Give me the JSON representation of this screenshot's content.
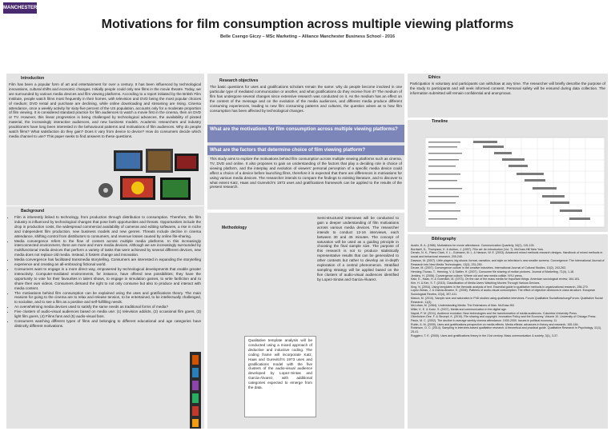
{
  "logo": "MANCHESTER",
  "title": "Motivations for film consumption across multiple viewing platforms",
  "subtitle": "Belle Csengo Giczy – MSc Marketing – Alliance Manchester Business School - 2016",
  "introduction": {
    "heading": "Introduction",
    "text": "Film has been a popular form of art and entertainment for over a century. It has been influenced by technological innovations, cultural shifts and economic changes. Initially people could only see films in the movie theatre. Today, we are surrounded by various media devices and film viewing platforms. According to a report initiated by the British Film Institute, people watch films most frequently in their homes, with television and DVD being the most popular choices of medium; DVD rental and purchase are declining, while online downloading and streaming are rising. Cinema attendance, once a weekly activity for sixty-five percent of the US population, accounts only for a moderate proportion of film viewing. It is considered standard practice for film audiences to watch a movie first in the cinema, then on DVD or TV. However, this linear progression is being challenged by technological advances, the availability of pirated material, the increasingly interactive audiences, and new business models. Academic researchers and industry practitioners have long been interested in the behavioural patterns and motivations of film audiences. Why do people watch films? What satisfaction do they gain? Does it vary from device to device? How do consumers decide which media channel to use? This paper seeks to find answers to these questions."
  },
  "background": {
    "heading": "Background",
    "items": [
      "Film is inherently linked to technology, from production through distribution to consumption. Therefore, the film industry is influenced by technological changes that pose both opportunities and threats. Opportunities include the drop in production costs, the widespread commercial availability of cameras and editing softwares, a rise in niche and independent film production, new business models and new genres. Threats include decline in cinema attendance, shifting control from distributors to consumers, and revenue losses caused by online file-sharing.",
      "Media convergence refers to the flow of content across multiple media platforms. In this increasingly interconnected environment, there are more and more media devices. Although we are increasingly surrounded by multifunctional media devices that perform a variety of tasks that were achieved by several different devices, new media does not replace old media. Instead, it fosters change and innovation.",
      "Media convergence has facilitated transmedia storytelling. Consumers are interested in expanding the storytelling experience and creating an all-embracing fictional world.",
      "Consumers want to engage in a more direct way, empowered by technological developments that enable greater interactivity. Computer-mediated environments, for instance, have offered new possibilities; they have the opportunity to vote for their favourites in talent shows, to engage in simulation games, to write fanfiction and to share their own videos. Consumers demand the right to not only consume but also to produce and interact with media content.",
      "The motivations behind film consumption can be explained using the uses and gratifications theory. The main reasons for going to the cinema are to relax and release tension, to be entertained, to be intellectually challenged, to socialise, and to see a film as a positive and self-fulfilling needs.",
      "An overwhelming media devices used to satisfy the same needs as traditional forms of media?",
      "Five clusters of audio-visual audiences based on media use: (1) television addicts, (2) occasional film goers, (3) light film goers, (4) Films fans and (5) audio-visual fans.",
      "Consumers watching different types of films and belonging to different educational and age categories have distinctly different motivations."
    ]
  },
  "research_objectives": {
    "heading": "Research objectives",
    "text": "The basic questions for uses and gratifications scholars remain the same: why do people become involved in one particular type of mediated communication or another, and what gratifications do they receive from it? The medium of film has undergone several changes since extensive research was conducted on it. As the medium has an effect on the content of the message and on the evolution of the media audiences, and different media produce different consuming experiences, leading to new film consuming patterns and cultures, the question arises as to how film consumption has been affected by technological changes.",
    "question1": "What are the motivations for film consumption across multiple viewing platforms?",
    "question2": "What are the factors that determine choice of film viewing platform?",
    "aim": "This study aims to explore the motivations behind film consumption across multiple viewing platforms such as cinema, TV, DVD and online. It also proposes to gain an understanding of the factors that play a deciding role in choice of viewing platform, and the interplay and evolution of viewers' personal perception of a specific media device could affect a choice of a device before launching films, therefore it is expected that there are differences in motivations for using various media devices. The researcher intends to compare the findings to existing literature, and to discover to what extent Katz, Haas and Gurevitch's 1973 uses and gratifications framework can be applied to the results of the present research."
  },
  "methodology": {
    "heading": "Methodology",
    "text1": "Semi-structured interviews will be conducted to gain a deeper understanding of film motivations across various media devices. The researcher intends to conduct 12-16 interviews, each between 30 and 45 minutes. The concept of saturation will be used as a guiding principle in choosing the final sample size. The purpose of this research is not to produce statistically representative results that can be generalized to other contexts but rather to develop an in-depth exploration of a central phenomenon. Stratified sampling strategy will be applied based on the five clusters of audio-visual audiences identified by Lopez-Sintas and Garcia-Álvarez.",
    "text2": "Qualitative template analysis will be conducted using a mixed approach of deductive and inductive coding. The coding frame will incorporate Katz, Haas and Gurevitch's 1973 uses and gratifications model with the five clusters of the audio-visual audience developed by Lopez-Sintas and Garcia-Álvarez, with additional categories expected to emerge from the data."
  },
  "ethics": {
    "heading": "Ethics",
    "text": "Participation is voluntary and participants can withdraw at any time. The researcher will briefly describe the purpose of the study to participants and will seek informed consent. Personal safety will be ensured during data collection. The information submitted will remain confidential and anonymous."
  },
  "timeline": {
    "heading": "Timeline"
  },
  "bibliography": {
    "heading": "Bibliography",
    "entries": [
      "Austin, B. A. (1986). Motivations for movie attendance. Communication Quarterly, 34(2), 115-126.",
      "Bordwell, D., Thompson, K. & Ashton, J. (1997). Film art: An introduction (Vol. 7). McGraw-Hill New York.",
      "Denzin, N. K., Plano Clark, V. L., Gutmann, M. L. & Hanson, W. E. (2003). Advanced mixed methods research designs. Handbook of mixed methods in social and behavioral research, 209-240.",
      "Dawson, M. (2007). Little players, big shows: format, narration, and style on television's new smaller screens. Convergence: The International Journal of Research into New Media Technologies, 13(3), 231-250.",
      "Deuze, M. (2007). Convergence culture in the creative industries. International Journal of Cultural Studies, 10(2), 243-263.",
      "Henning-Thurau, T., Henning, V. & Sattler, H. (2007). Consumer file sharing of motion pictures. Journal of Marketing, 71(4), 1-18.",
      "Jenkins, H. (2006). Convergence culture: Where old and new media collide. NYU press.",
      "Katz, E., Haas, H. & Gurevitch, M. (1973). On the use of the mass media for important things. American sociological review, 164-181.",
      "Kim, H. & Kim, S. T. (2015). Classification of Media Users Watching Movies Through Various Devices.",
      "King, N. (2004). Using templates in the thematic analysis of text. Essential guide to qualitative methods in organizational research, 256-270.",
      "Lopez-Sintas, J. & Garcia-Álvarez, E. (2006). Patterns of audio-visual consumption: The effect of objective decisions in class structure. European Sociological Review, 22(4), 397-411.",
      "Mason, M. (2010). Sample size and saturation in PhD studies using qualitative interviews. Forum Qualitative Sozialforschung/Forum: Qualitative Social Research, 11(3).",
      "McLuhan, M. (1964). Understanding Media: The Extensions of Man. McGraw-Hill.",
      "Miller, K. E. & Kurtz, S. (2007). Media and communication in the digital age.",
      "Napoli, P. M. (2011). Audience evolution: New technologies and the transformation of media audiences. Columbia University Press.",
      "Oberholzer-Gee, F. & Strumpf, K. (2010). File sharing and copyright. Innovation Policy and the Economy, Volume 10. University of Chicago Press.",
      "Pautz, M. C. (2002). The decline in average weekly cinema attendance: 1930-2000. Issues in political economy, 11.",
      "Rubin, A. M. (2009). Uses and gratifications perspective on media effects. Media effects: advances in theory and research, 165-184.",
      "Robinson, O. C. (2014). Sampling in interview-based qualitative research: A theoretical and practical guide. Qualitative Research in Psychology, 11(1), 25-41.",
      "Ruggiero, T. E. (2000). Uses and gratifications theory in the 21st century. Mass communication & society, 3(1), 3-37."
    ]
  }
}
